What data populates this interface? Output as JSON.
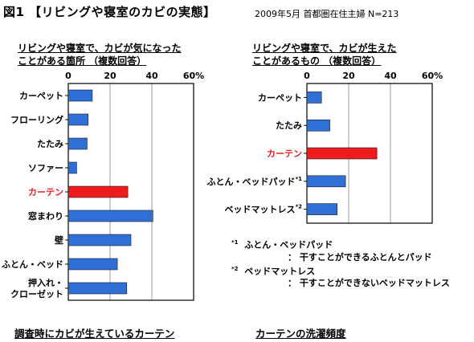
{
  "header": {
    "title": "図1 【リビングや寝室のカビの実態】",
    "survey_info": "2009年5月 首都圏在住主婦 N=213"
  },
  "colors": {
    "bar": "#2f6fd6",
    "highlight": "#ee1c1c",
    "frame": "#000000",
    "grid": "#9a9a9a"
  },
  "chart_data": [
    {
      "type": "bar",
      "orientation": "horizontal",
      "title_lines": [
        "リビングや寝室で、カビが気になった",
        "ことがある箇所 （複数回答）"
      ],
      "categories": [
        "カーペット",
        "フローリング",
        "たたみ",
        "ソファー",
        "カーテン",
        "窓まわり",
        "壁",
        "ふとん・ベッド",
        "押入れ・クローゼット"
      ],
      "category_lines": [
        [
          "カーペット"
        ],
        [
          "フローリング"
        ],
        [
          "たたみ"
        ],
        [
          "ソファー"
        ],
        [
          "カーテン"
        ],
        [
          "窓まわり"
        ],
        [
          "壁"
        ],
        [
          "ふとん・ベッド"
        ],
        [
          "押入れ・",
          "クローゼット"
        ]
      ],
      "values": [
        11.5,
        9.5,
        9,
        4,
        28.5,
        40.5,
        30,
        23.5,
        28
      ],
      "highlight_index": 4,
      "xlim": [
        0,
        60
      ],
      "ticks": [
        "0",
        "20",
        "40",
        "60%"
      ],
      "tick_values": [
        0,
        20,
        40,
        60
      ]
    },
    {
      "type": "bar",
      "orientation": "horizontal",
      "title_lines": [
        "リビングや寝室で、カビが生えた",
        "ことがあるもの （複数回答）"
      ],
      "categories": [
        "カーペット",
        "たたみ",
        "カーテン",
        "ふとん・ベッドパッド",
        "ベッドマットレス"
      ],
      "category_lines": [
        [
          "カーペット"
        ],
        [
          "たたみ"
        ],
        [
          "カーテン"
        ],
        [
          "ふとん・ベッドパッド"
        ],
        [
          "ベッドマットレス"
        ]
      ],
      "category_marks": [
        "",
        "",
        "",
        "*1",
        "*2"
      ],
      "values": [
        7,
        11,
        33.5,
        18.5,
        14.5
      ],
      "highlight_index": 2,
      "xlim": [
        0,
        60
      ],
      "ticks": [
        "0",
        "20",
        "40",
        "60%"
      ],
      "tick_values": [
        0,
        20,
        40,
        60
      ]
    }
  ],
  "notes": [
    {
      "mark": "*1",
      "term": "ふとん・ベッドパッド",
      "desc": "： 干すことができるふとんとパッド"
    },
    {
      "mark": "*2",
      "term": "ベッドマットレス",
      "desc": "： 干すことができないベッドマットレス"
    }
  ],
  "footer": {
    "left": "調査時にカビが生えているカーテン",
    "right": "カーテンの洗濯頻度"
  }
}
